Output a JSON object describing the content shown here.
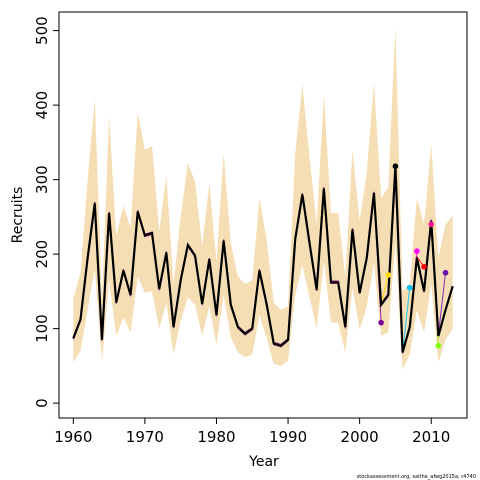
{
  "chart_data": {
    "type": "line",
    "title": "",
    "xlabel": "Year",
    "ylabel": "Recruits",
    "xlim": [
      1958,
      2015
    ],
    "ylim": [
      -20,
      525
    ],
    "xticks": [
      1960,
      1970,
      1980,
      1990,
      2000,
      2010
    ],
    "yticks": [
      0,
      100,
      200,
      300,
      400,
      500
    ],
    "grid": false,
    "credit": "stockassessment.org, saithe_afwg2015a, r4740",
    "colors": {
      "band": "#f5deb3",
      "main": "#000000",
      "retro": [
        "#7b0099",
        "#ffd700",
        "#000000",
        "#00bfff",
        "#ff00ff",
        "#ff0000",
        "#32cd32",
        "#ff1493",
        "#6a0dad",
        "#7fff00"
      ]
    },
    "x": [
      1960,
      1961,
      1962,
      1963,
      1964,
      1965,
      1966,
      1967,
      1968,
      1969,
      1970,
      1971,
      1972,
      1973,
      1974,
      1975,
      1976,
      1977,
      1978,
      1979,
      1980,
      1981,
      1982,
      1983,
      1984,
      1985,
      1986,
      1987,
      1988,
      1989,
      1990,
      1991,
      1992,
      1993,
      1994,
      1995,
      1996,
      1997,
      1998,
      1999,
      2000,
      2001,
      2002,
      2003,
      2004,
      2005,
      2006,
      2007,
      2008,
      2009,
      2010,
      2011,
      2012,
      2013
    ],
    "estimate": [
      87,
      112,
      195,
      268,
      85,
      255,
      135,
      178,
      145,
      257,
      225,
      228,
      153,
      202,
      102,
      165,
      212,
      198,
      133,
      193,
      118,
      218,
      132,
      102,
      93,
      100,
      178,
      133,
      80,
      77,
      85,
      220,
      280,
      215,
      152,
      288,
      162,
      162,
      102,
      233,
      148,
      195,
      282,
      132,
      145,
      318,
      68,
      102,
      195,
      150,
      245,
      90,
      125,
      157
    ],
    "band_upper": [
      140,
      175,
      300,
      408,
      140,
      385,
      225,
      265,
      235,
      390,
      340,
      345,
      230,
      305,
      160,
      250,
      322,
      298,
      210,
      295,
      190,
      335,
      215,
      170,
      160,
      165,
      275,
      220,
      135,
      125,
      130,
      335,
      428,
      330,
      240,
      415,
      255,
      255,
      170,
      340,
      245,
      310,
      430,
      275,
      290,
      505,
      150,
      160,
      275,
      240,
      348,
      195,
      240,
      252
    ],
    "band_lower": [
      55,
      70,
      125,
      180,
      55,
      165,
      90,
      115,
      95,
      170,
      148,
      150,
      100,
      135,
      65,
      110,
      142,
      132,
      90,
      130,
      78,
      145,
      88,
      68,
      62,
      65,
      118,
      88,
      53,
      50,
      57,
      145,
      185,
      142,
      100,
      190,
      108,
      108,
      68,
      155,
      98,
      130,
      188,
      90,
      95,
      215,
      45,
      65,
      125,
      95,
      160,
      55,
      85,
      100
    ],
    "retro_endpoints": [
      {
        "x": 2003,
        "y": 108,
        "color": "#7b0099"
      },
      {
        "x": 2004,
        "y": 172,
        "color": "#ffd700"
      },
      {
        "x": 2005,
        "y": 318,
        "color": "#000000"
      },
      {
        "x": 2007,
        "y": 155,
        "color": "#00bfff"
      },
      {
        "x": 2008,
        "y": 204,
        "color": "#ff00ff"
      },
      {
        "x": 2009,
        "y": 183,
        "color": "#ff0000"
      },
      {
        "x": 2010,
        "y": 240,
        "color": "#ff1493"
      },
      {
        "x": 2011,
        "y": 77,
        "color": "#7fff00"
      },
      {
        "x": 2012,
        "y": 175,
        "color": "#6a0dad"
      }
    ]
  }
}
